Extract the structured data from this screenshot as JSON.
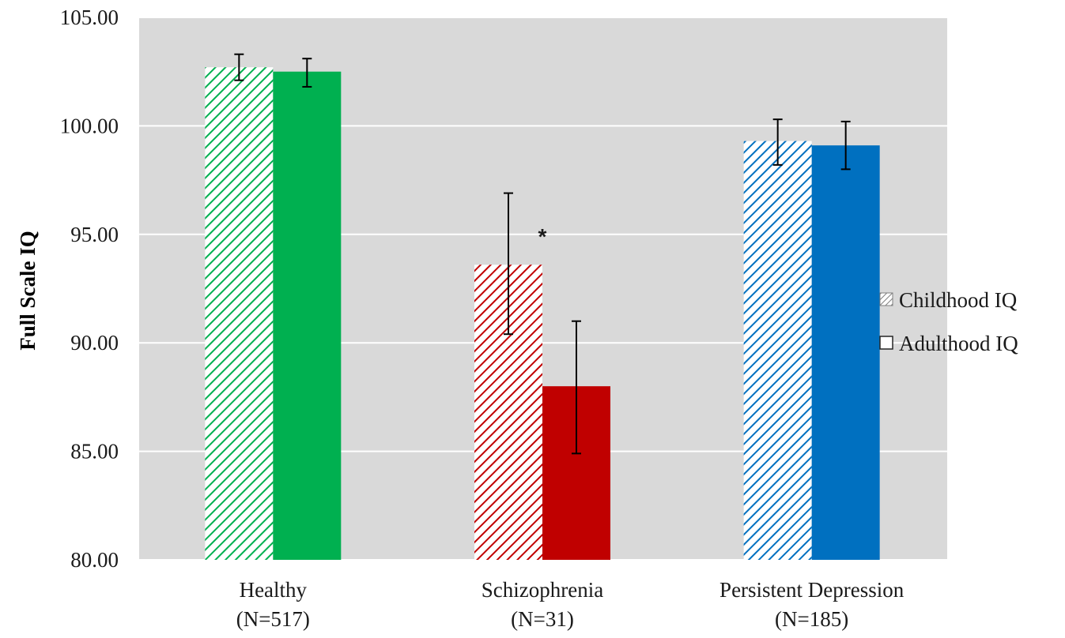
{
  "chart_data": {
    "type": "bar",
    "title": "",
    "xlabel": "",
    "ylabel": "Full Scale IQ",
    "ylim": [
      80,
      105
    ],
    "yticks": [
      "80.00",
      "85.00",
      "90.00",
      "95.00",
      "100.00",
      "105.00"
    ],
    "grid": true,
    "legend_position": "right",
    "categories": [
      {
        "name": "Healthy",
        "n": "(N=517)",
        "color": "#00b050"
      },
      {
        "name": "Schizophrenia",
        "n": "(N=31)",
        "color": "#c00000"
      },
      {
        "name": "Persistent Depression",
        "n": "(N=185)",
        "color": "#0070c0"
      }
    ],
    "series": [
      {
        "name": "Childhood IQ",
        "fill": "hatched",
        "values": [
          102.7,
          93.6,
          99.3
        ],
        "error_low": [
          102.1,
          90.4,
          98.2
        ],
        "error_high": [
          103.3,
          96.9,
          100.3
        ]
      },
      {
        "name": "Adulthood IQ",
        "fill": "solid",
        "values": [
          102.5,
          88.0,
          99.1
        ],
        "error_low": [
          101.8,
          84.9,
          98.0
        ],
        "error_high": [
          103.1,
          91.0,
          100.2
        ]
      }
    ],
    "annotations": [
      {
        "text": "*",
        "category": 1
      }
    ],
    "colors": {
      "plot_background": "#d9d9d9",
      "gridline": "#ffffff"
    }
  }
}
